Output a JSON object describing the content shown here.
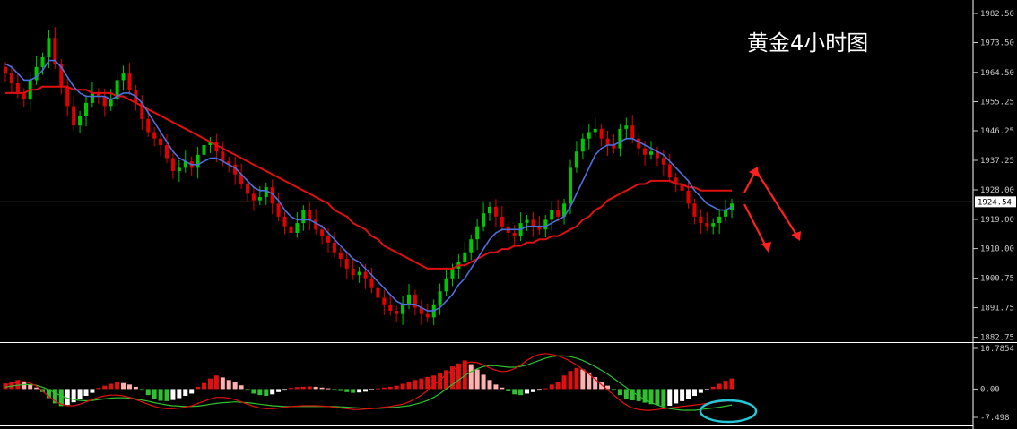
{
  "chart_data": [
    {
      "type": "candlestick",
      "annotation": "黄金4小时图",
      "y_ticks": [
        "1982.50",
        "1973.50",
        "1964.50",
        "1955.25",
        "1946.25",
        "1937.25",
        "1928.00",
        "1919.00",
        "1910.00",
        "1900.75",
        "1891.75",
        "1882.75"
      ],
      "ylim": [
        1882.75,
        1982.5
      ],
      "current_price": "1924.54",
      "colors": {
        "up": "#00c800",
        "down": "#e00000",
        "ma_fast": "#4d6fe0",
        "ma_slow": "#e01010",
        "grid": "#888888"
      },
      "close_series": [
        1964,
        1961,
        1958,
        1956,
        1962,
        1966,
        1969,
        1975,
        1967,
        1960,
        1954,
        1948,
        1951,
        1955,
        1958,
        1957,
        1954,
        1956,
        1962,
        1964,
        1959,
        1955,
        1950,
        1946,
        1944,
        1942,
        1938,
        1934,
        1935,
        1937,
        1935,
        1939,
        1942,
        1943,
        1940,
        1937,
        1936,
        1933,
        1930,
        1927,
        1925,
        1926,
        1929,
        1924,
        1920,
        1917,
        1915,
        1918,
        1922,
        1919,
        1916,
        1914,
        1912,
        1909,
        1907,
        1904,
        1902,
        1903,
        1901,
        1898,
        1895,
        1893,
        1891,
        1890,
        1893,
        1896,
        1892,
        1890,
        1889,
        1893,
        1897,
        1901,
        1904,
        1906,
        1909,
        1913,
        1917,
        1921,
        1923,
        1920,
        1917,
        1915,
        1914,
        1918,
        1919,
        1917,
        1916,
        1919,
        1922,
        1920,
        1924,
        1935,
        1940,
        1944,
        1946,
        1947,
        1944,
        1942,
        1941,
        1947,
        1948,
        1944,
        1941,
        1939,
        1940,
        1938,
        1936,
        1932,
        1930,
        1928,
        1924,
        1920,
        1918,
        1917,
        1918,
        1920,
        1922,
        1924
      ],
      "ma_fast": [
        1967,
        1966,
        1964,
        1962,
        1962,
        1963,
        1965,
        1968,
        1968,
        1966,
        1963,
        1960,
        1958,
        1957,
        1957,
        1957,
        1957,
        1956,
        1957,
        1958,
        1958,
        1957,
        1955,
        1952,
        1949,
        1946,
        1943,
        1940,
        1938,
        1937,
        1936,
        1936,
        1937,
        1938,
        1938,
        1937,
        1936,
        1935,
        1933,
        1931,
        1929,
        1928,
        1928,
        1927,
        1925,
        1922,
        1920,
        1919,
        1919,
        1919,
        1918,
        1917,
        1915,
        1913,
        1911,
        1909,
        1907,
        1906,
        1904,
        1902,
        1900,
        1898,
        1896,
        1894,
        1893,
        1893,
        1893,
        1892,
        1891,
        1891,
        1892,
        1894,
        1896,
        1899,
        1901,
        1904,
        1907,
        1910,
        1913,
        1915,
        1916,
        1916,
        1916,
        1916,
        1917,
        1917,
        1917,
        1917,
        1918,
        1919,
        1920,
        1923,
        1927,
        1931,
        1935,
        1939,
        1941,
        1942,
        1942,
        1943,
        1944,
        1944,
        1943,
        1942,
        1941,
        1940,
        1939,
        1937,
        1935,
        1933,
        1931,
        1928,
        1926,
        1924,
        1923,
        1922,
        1922,
        1923
      ],
      "ma_slow": [
        1958,
        1958,
        1958,
        1958,
        1959,
        1959,
        1960,
        1960,
        1960,
        1960,
        1960,
        1959,
        1959,
        1959,
        1958,
        1958,
        1958,
        1958,
        1957,
        1957,
        1956,
        1955,
        1954,
        1953,
        1952,
        1951,
        1950,
        1949,
        1948,
        1947,
        1946,
        1945,
        1944,
        1943,
        1942,
        1941,
        1940,
        1939,
        1938,
        1937,
        1936,
        1935,
        1934,
        1933,
        1932,
        1931,
        1930,
        1929,
        1928,
        1927,
        1926,
        1925,
        1924,
        1922,
        1921,
        1920,
        1918,
        1917,
        1916,
        1914,
        1913,
        1911,
        1910,
        1909,
        1908,
        1907,
        1906,
        1905,
        1904,
        1904,
        1904,
        1904,
        1904,
        1905,
        1905,
        1906,
        1907,
        1908,
        1909,
        1909,
        1910,
        1910,
        1911,
        1911,
        1912,
        1912,
        1913,
        1913,
        1914,
        1914,
        1915,
        1916,
        1917,
        1919,
        1920,
        1922,
        1923,
        1925,
        1926,
        1927,
        1928,
        1929,
        1930,
        1930,
        1931,
        1931,
        1931,
        1931,
        1930,
        1930,
        1929,
        1929,
        1928,
        1928,
        1928,
        1928,
        1928,
        1928
      ]
    },
    {
      "type": "bar",
      "indicator": "MACD",
      "y_ticks": [
        "10.7854",
        "0.00",
        "-7.498"
      ],
      "ylim": [
        -7.498,
        10.7854
      ],
      "colors": {
        "up_inc": "#e01010",
        "up_dec": "#ffb0b0",
        "down_dec": "#30c030",
        "down_inc": "#ffffff",
        "signal_a": "#e01010",
        "signal_b": "#30c030",
        "highlight": "#20c8d8"
      },
      "histogram": [
        1.5,
        2.0,
        2.4,
        2.0,
        1.2,
        0.4,
        -0.8,
        -2.4,
        -3.8,
        -4.5,
        -4.2,
        -3.5,
        -2.6,
        -1.8,
        -1.0,
        0.3,
        0.9,
        1.4,
        1.9,
        1.6,
        1.2,
        0.6,
        -0.4,
        -1.6,
        -2.6,
        -3.1,
        -3.2,
        -2.9,
        -2.4,
        -1.8,
        -1.2,
        0.6,
        1.6,
        2.8,
        3.6,
        3.1,
        2.4,
        1.8,
        1.0,
        -0.4,
        -1.2,
        -1.6,
        -1.8,
        -1.4,
        -0.8,
        -0.4,
        0.3,
        0.5,
        0.6,
        0.7,
        0.6,
        0.4,
        0.2,
        -0.2,
        -0.5,
        -0.8,
        -1.0,
        -0.9,
        -0.7,
        -0.3,
        0.2,
        0.4,
        0.6,
        0.9,
        1.4,
        1.9,
        2.4,
        2.8,
        3.2,
        3.6,
        4.2,
        5.0,
        6.0,
        6.8,
        7.6,
        6.6,
        5.2,
        3.8,
        2.4,
        1.2,
        0.4,
        -0.6,
        -1.4,
        -1.6,
        -1.2,
        -0.8,
        -0.4,
        0.2,
        1.2,
        2.0,
        3.6,
        4.8,
        5.6,
        5.2,
        4.4,
        3.2,
        2.0,
        0.9,
        -0.4,
        -1.6,
        -2.6,
        -3.0,
        -3.2,
        -3.6,
        -4.0,
        -4.2,
        -4.6,
        -4.4,
        -3.8,
        -3.2,
        -2.6,
        -1.8,
        -1.0,
        -0.2,
        0.6,
        1.4,
        2.2,
        2.8
      ],
      "line_a": [
        1.2,
        1.4,
        1.8,
        2.0,
        1.6,
        0.8,
        -0.6,
        -2.0,
        -3.2,
        -4.0,
        -4.4,
        -4.4,
        -4.0,
        -3.4,
        -2.8,
        -2.2,
        -1.8,
        -1.6,
        -1.6,
        -1.8,
        -2.2,
        -2.8,
        -3.4,
        -4.0,
        -4.6,
        -5.0,
        -5.2,
        -5.2,
        -5.0,
        -4.8,
        -4.4,
        -3.8,
        -3.2,
        -2.6,
        -2.2,
        -2.2,
        -2.4,
        -2.8,
        -3.4,
        -4.0,
        -4.6,
        -5.0,
        -5.2,
        -5.2,
        -5.0,
        -4.8,
        -4.6,
        -4.5,
        -4.4,
        -4.4,
        -4.4,
        -4.5,
        -4.6,
        -4.8,
        -5.0,
        -5.2,
        -5.4,
        -5.4,
        -5.3,
        -5.2,
        -5.0,
        -4.8,
        -4.6,
        -4.3,
        -4.0,
        -3.4,
        -2.6,
        -1.6,
        -0.4,
        1.0,
        2.4,
        3.8,
        5.0,
        6.0,
        6.8,
        7.2,
        7.0,
        6.4,
        5.6,
        5.0,
        4.6,
        4.8,
        5.4,
        6.4,
        7.6,
        8.6,
        9.2,
        9.4,
        9.2,
        8.8,
        8.2,
        7.4,
        6.4,
        5.2,
        4.0,
        2.6,
        1.2,
        -0.2,
        -1.6,
        -3.0,
        -4.2,
        -5.0,
        -5.4,
        -5.6,
        -5.6,
        -5.4,
        -5.2,
        -5.0,
        -4.8,
        -4.6,
        -4.4,
        -4.2,
        -4.0,
        -3.8,
        -3.6,
        -3.4,
        -3.2,
        -3.0
      ],
      "line_b": [
        0.5,
        0.8,
        1.0,
        1.2,
        1.2,
        1.0,
        0.5,
        -0.2,
        -1.0,
        -1.8,
        -2.4,
        -2.8,
        -3.0,
        -3.1,
        -3.0,
        -2.8,
        -2.6,
        -2.4,
        -2.3,
        -2.3,
        -2.4,
        -2.6,
        -2.9,
        -3.2,
        -3.6,
        -3.9,
        -4.2,
        -4.4,
        -4.5,
        -4.6,
        -4.6,
        -4.5,
        -4.3,
        -4.0,
        -3.8,
        -3.6,
        -3.5,
        -3.4,
        -3.5,
        -3.6,
        -3.8,
        -4.0,
        -4.2,
        -4.4,
        -4.5,
        -4.6,
        -4.6,
        -4.6,
        -4.6,
        -4.6,
        -4.6,
        -4.6,
        -4.6,
        -4.6,
        -4.7,
        -4.8,
        -4.9,
        -5.0,
        -5.1,
        -5.1,
        -5.1,
        -5.0,
        -4.9,
        -4.8,
        -4.6,
        -4.4,
        -4.0,
        -3.6,
        -3.0,
        -2.2,
        -1.2,
        0.0,
        1.2,
        2.4,
        3.6,
        4.6,
        5.4,
        6.0,
        6.2,
        6.2,
        6.0,
        5.8,
        5.8,
        6.0,
        6.4,
        7.0,
        7.6,
        8.2,
        8.6,
        8.8,
        8.8,
        8.6,
        8.2,
        7.6,
        6.8,
        6.0,
        5.0,
        4.0,
        2.8,
        1.6,
        0.4,
        -0.8,
        -1.8,
        -2.8,
        -3.6,
        -4.2,
        -4.8,
        -5.2,
        -5.4,
        -5.6,
        -5.6,
        -5.6,
        -5.4,
        -5.2,
        -5.0,
        -4.8,
        -4.5,
        -4.2
      ]
    }
  ]
}
